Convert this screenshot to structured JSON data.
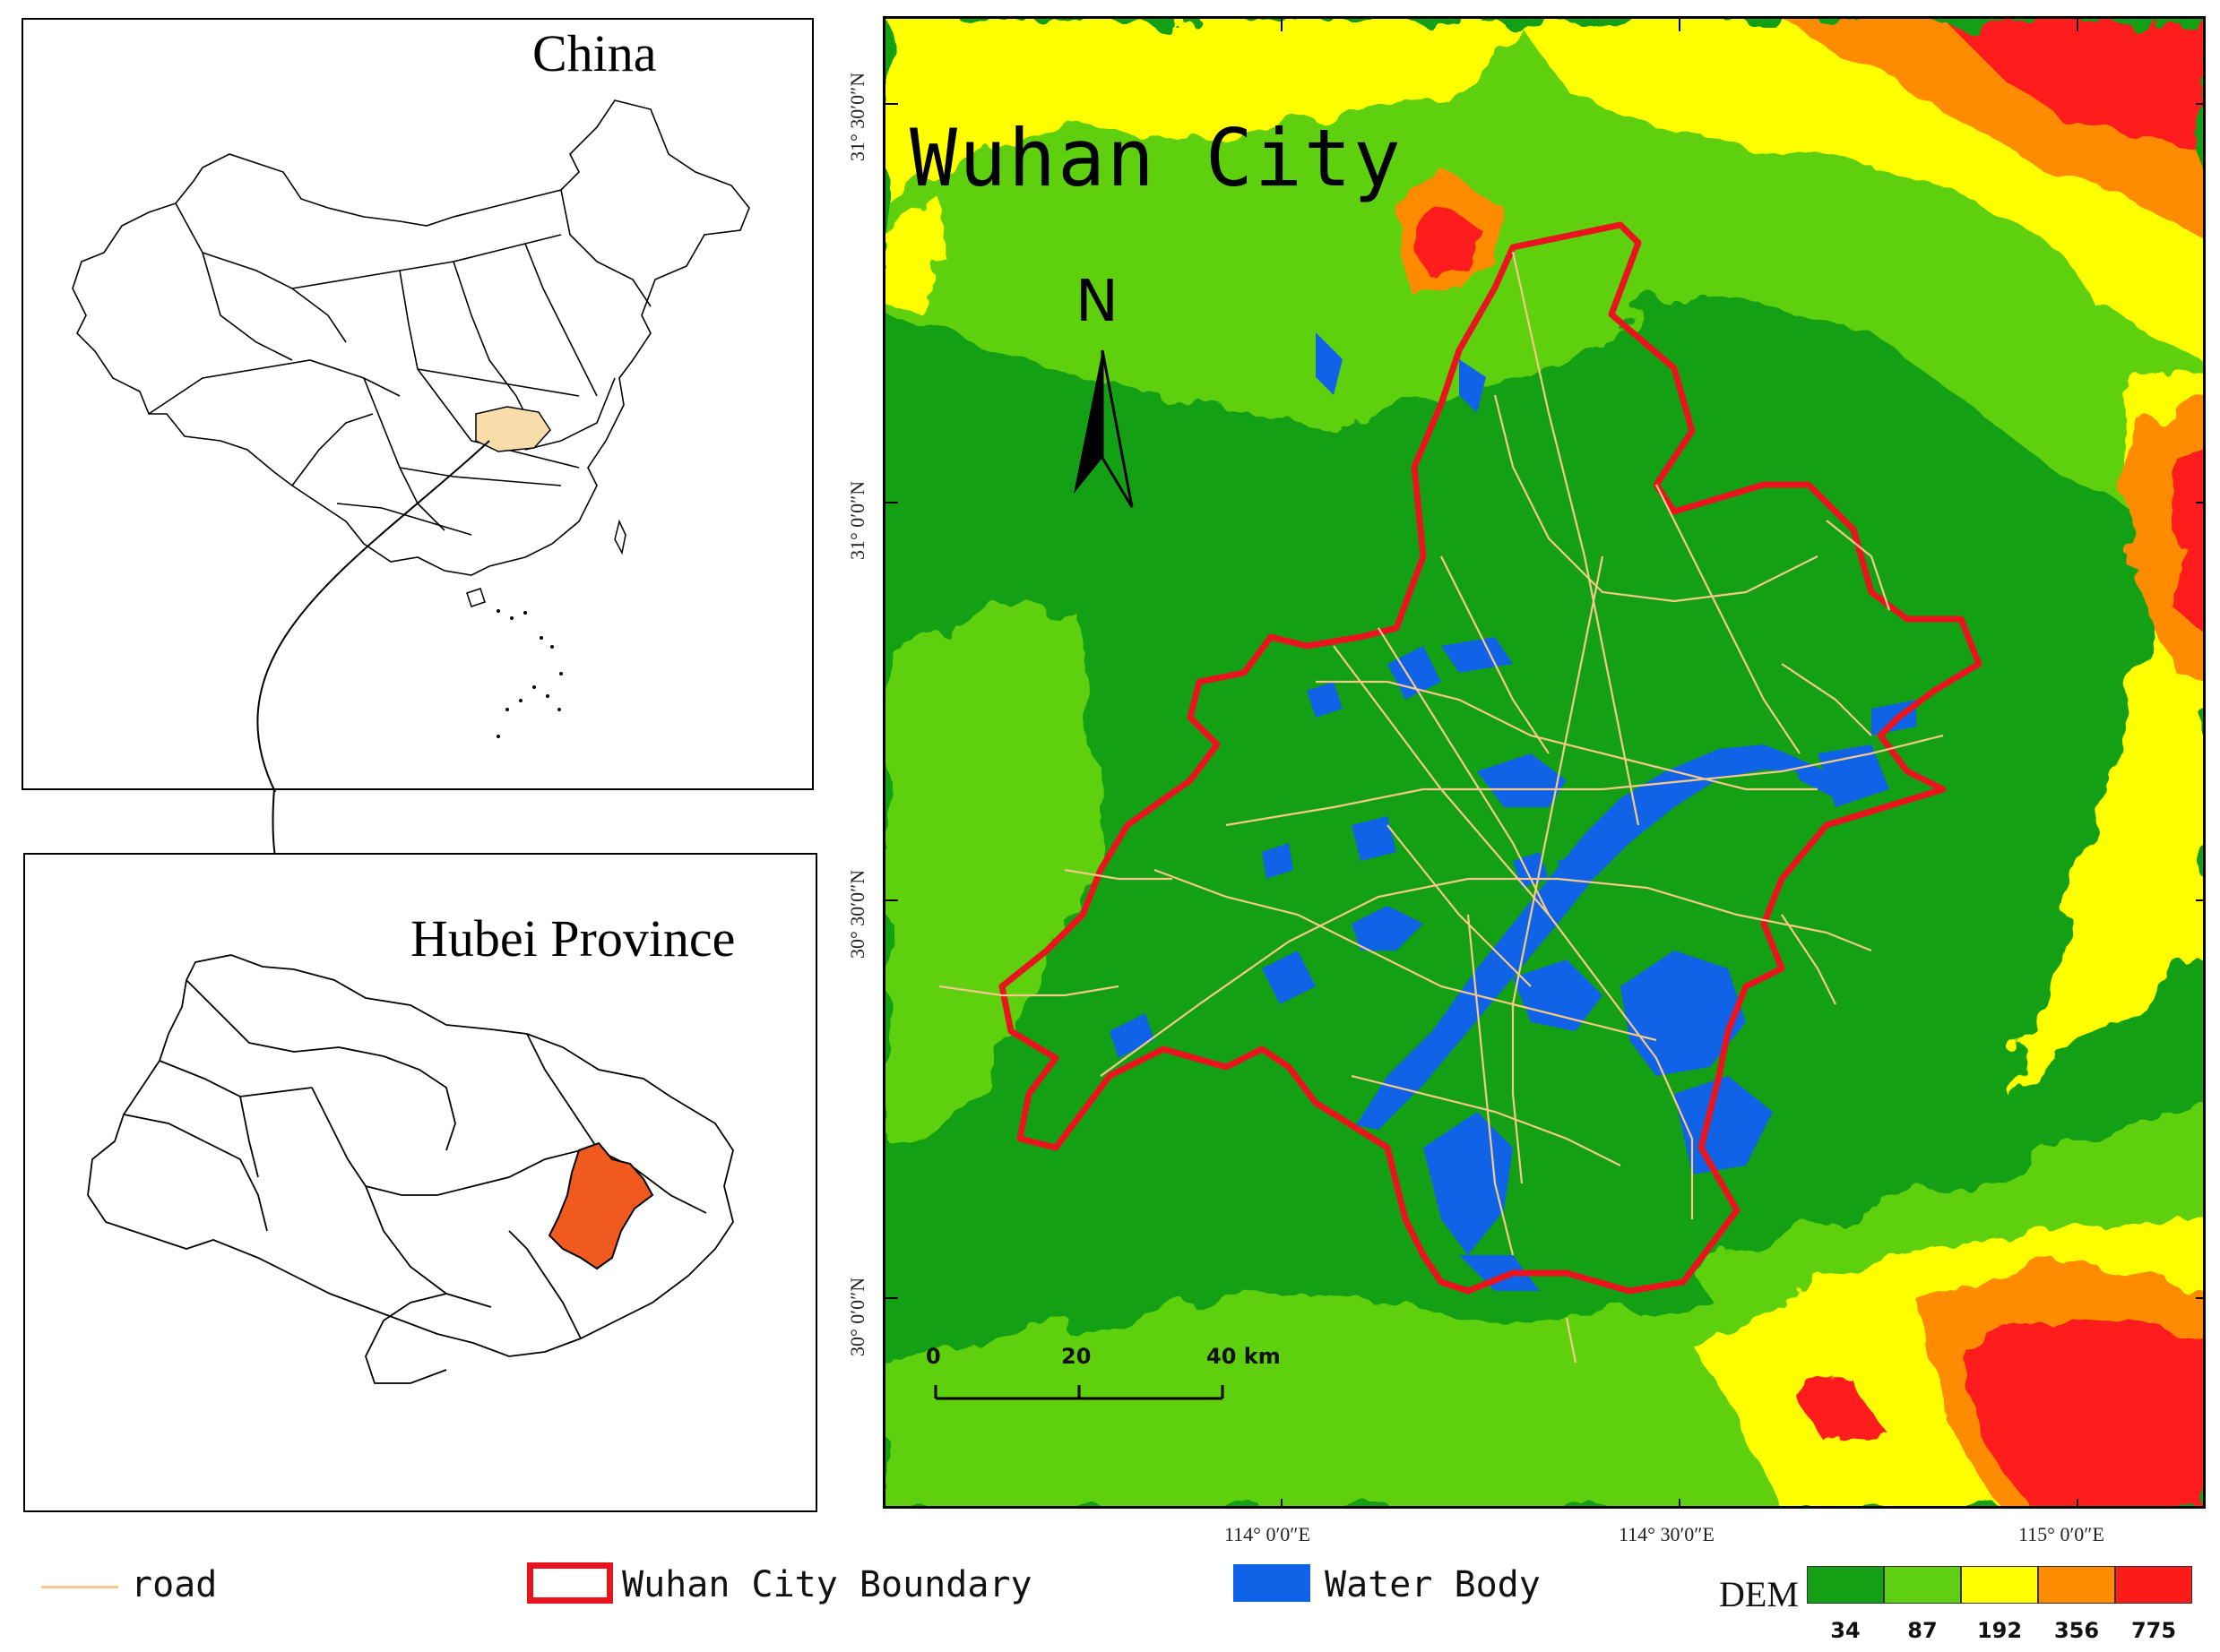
{
  "china_panel": {
    "title": "China"
  },
  "hubei_panel": {
    "title": "Hubei Province"
  },
  "main_map": {
    "title": "Wuhan City",
    "north_arrow": "N",
    "lat_labels": [
      "31° 30′0″N",
      "31° 0′0″N",
      "30° 30′0″N",
      "30° 0′0″N"
    ],
    "lon_labels": [
      "114° 0′0″E",
      "114° 30′0″E",
      "115° 0′0″E"
    ],
    "scale_bar": {
      "labels": [
        "0",
        "20",
        "40 km"
      ]
    }
  },
  "legend": {
    "road": "road",
    "boundary": "Wuhan City Boundary",
    "water": "Water Body",
    "dem_title": "DEM",
    "dem_classes": [
      {
        "label": "34",
        "color": "#14a014"
      },
      {
        "label": "87",
        "color": "#5fd011"
      },
      {
        "label": "192",
        "color": "#ffff00"
      },
      {
        "label": "356",
        "color": "#ff8c00"
      },
      {
        "label": "775",
        "color": "#ff1a1a"
      }
    ]
  },
  "colors": {
    "boundary": "#e8141e",
    "water": "#1062e6",
    "road": "#f4c98a",
    "highlight_china": "#f8dcaa",
    "highlight_hubei": "#f05a1e"
  }
}
